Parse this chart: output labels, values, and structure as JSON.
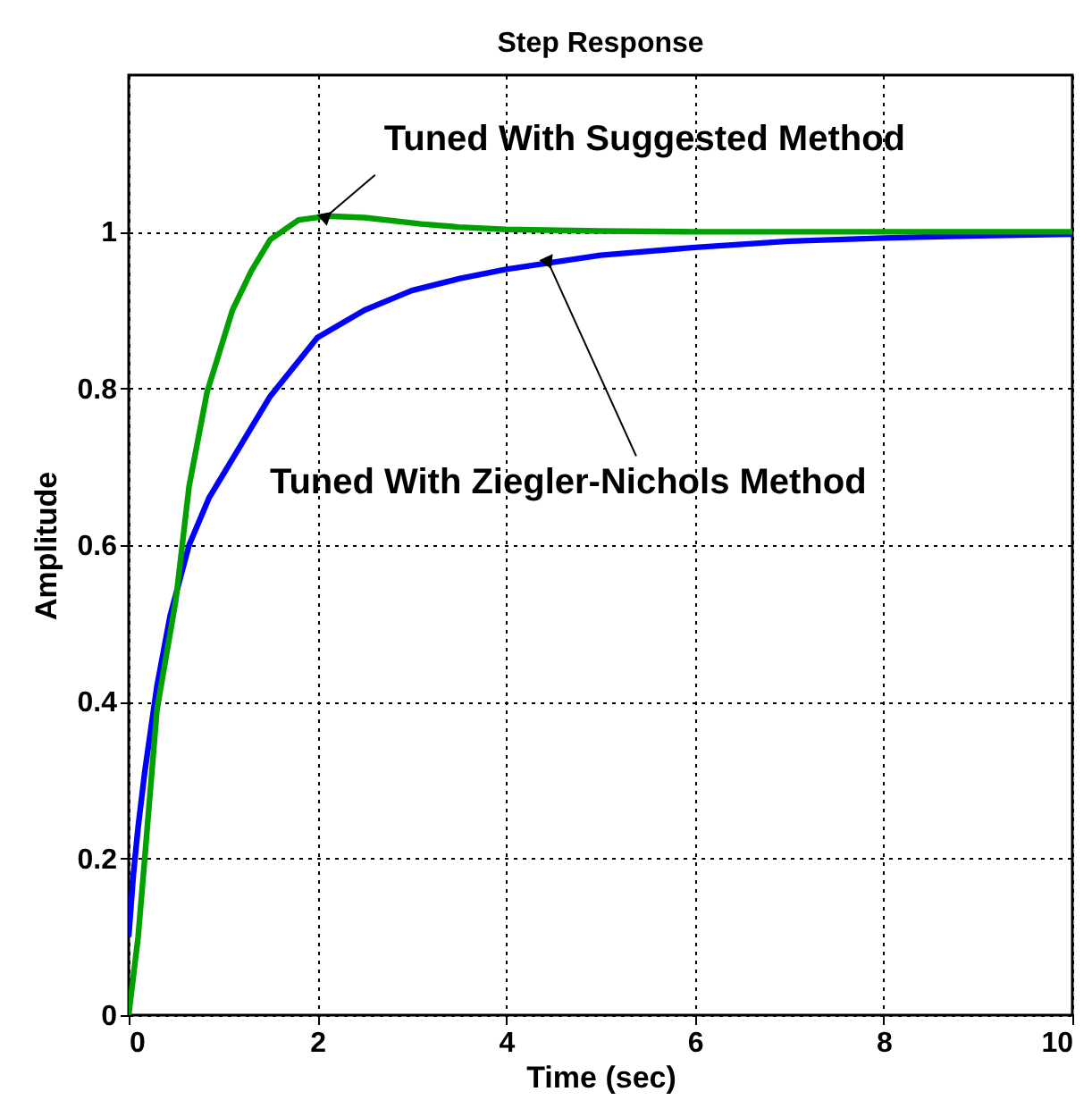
{
  "chart_data": {
    "type": "line",
    "title": "Step Response",
    "xlabel": "Time (sec)",
    "ylabel": "Amplitude",
    "xlim": [
      0,
      10
    ],
    "ylim": [
      0,
      1.2
    ],
    "xticks": [
      0,
      2,
      4,
      6,
      8,
      10
    ],
    "yticks": [
      0,
      0.2,
      0.4,
      0.6,
      0.8,
      1
    ],
    "grid": true,
    "line_style": "solid",
    "series": [
      {
        "color": "#0000ff",
        "x": [
          0,
          0.05,
          0.1,
          0.17,
          0.3,
          0.44,
          0.64,
          0.85,
          1.1,
          1.5,
          2,
          2.5,
          3,
          3.5,
          4,
          5,
          6,
          7,
          8,
          9,
          10
        ],
        "values": [
          0.1,
          0.18,
          0.24,
          0.31,
          0.42,
          0.51,
          0.6,
          0.66,
          0.71,
          0.79,
          0.865,
          0.9,
          0.925,
          0.94,
          0.952,
          0.97,
          0.98,
          0.988,
          0.992,
          0.995,
          0.997
        ]
      },
      {
        "color": "#00a000",
        "x": [
          0,
          0.1,
          0.17,
          0.3,
          0.5,
          0.64,
          0.83,
          1.1,
          1.3,
          1.5,
          1.8,
          2.1,
          2.5,
          3.1,
          3.5,
          4,
          5,
          6,
          8,
          10
        ],
        "values": [
          0,
          0.1,
          0.2,
          0.39,
          0.53,
          0.675,
          0.795,
          0.9,
          0.95,
          0.99,
          1.015,
          1.02,
          1.018,
          1.01,
          1.006,
          1.003,
          1.001,
          1,
          1,
          1
        ]
      }
    ],
    "annotations": [
      {
        "text": "Tuned With Suggested Method",
        "x": 2.1,
        "y": 1.02
      },
      {
        "text": "Tuned With Ziegler-Nichols Method",
        "x": 4.45,
        "y": 0.96
      }
    ]
  }
}
